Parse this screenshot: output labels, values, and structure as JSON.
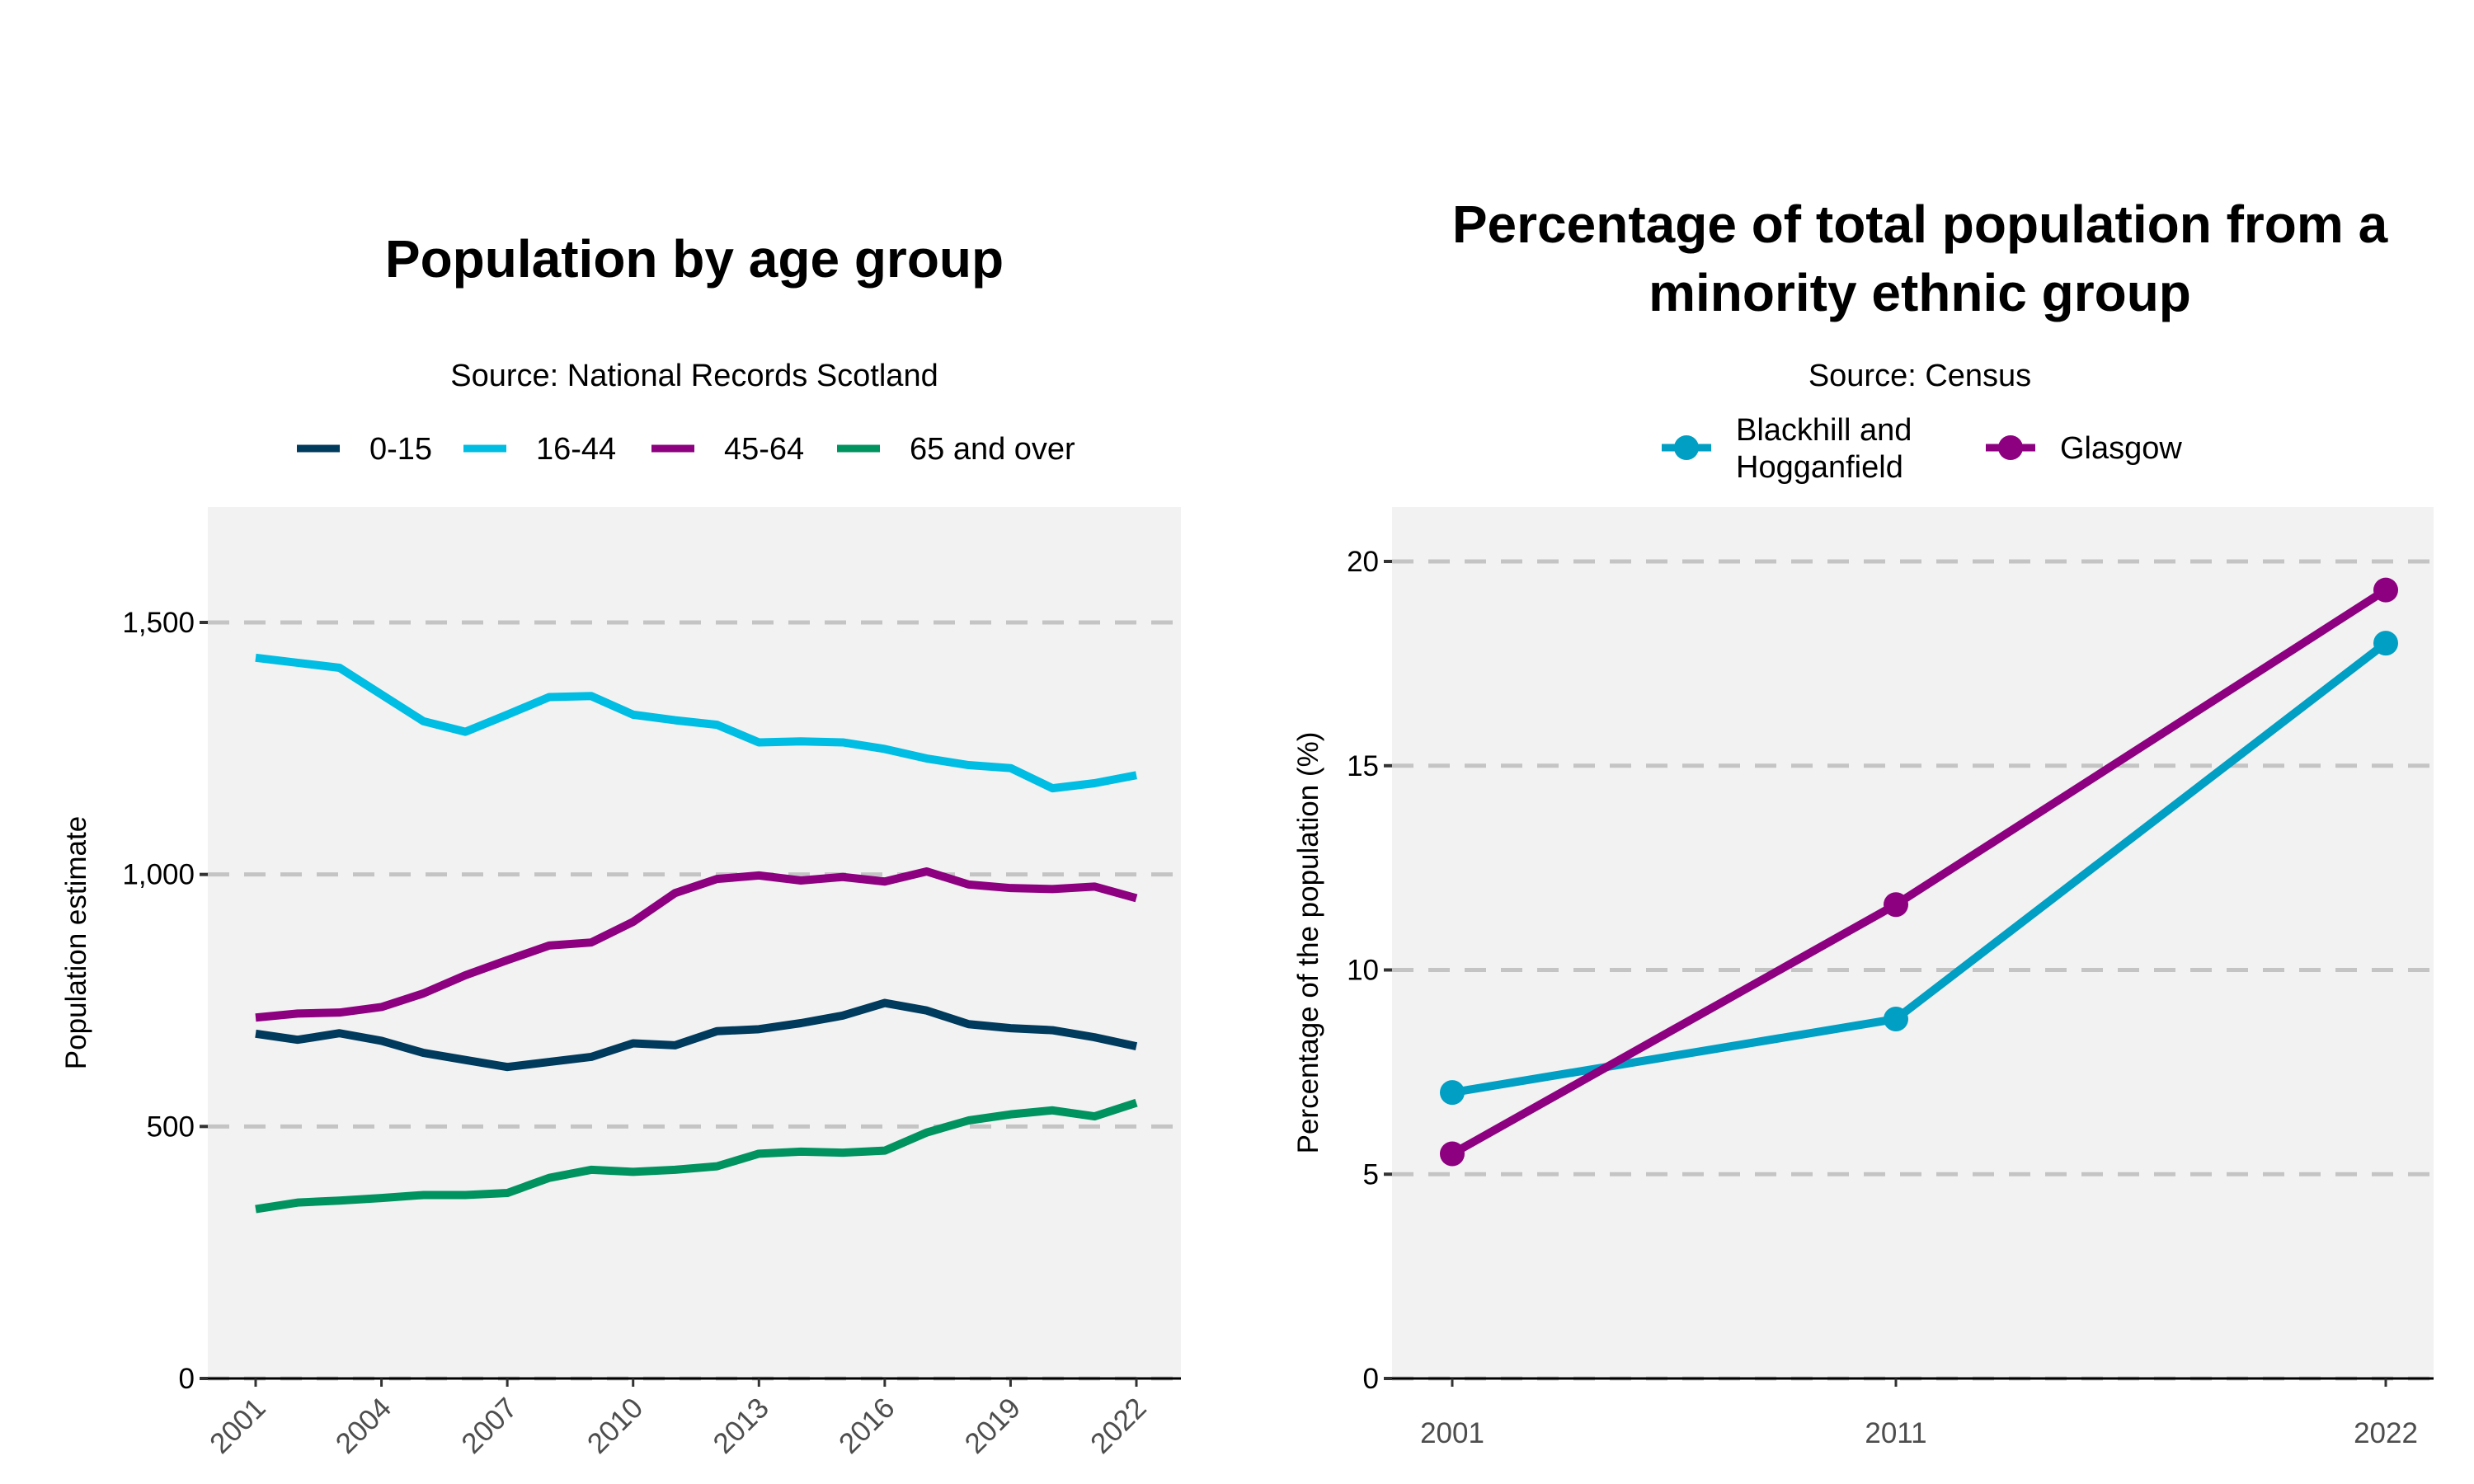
{
  "chart_data": [
    {
      "type": "line",
      "title": "Population by age group",
      "subtitle": "Source: National Records Scotland",
      "xlabel": "",
      "ylabel": "Population estimate",
      "ylim": [
        0,
        1720
      ],
      "yticks": [
        0,
        500,
        1000,
        1500
      ],
      "ytick_labels": [
        "0",
        "500",
        "1,000",
        "1,500"
      ],
      "xticks": [
        2001,
        2004,
        2007,
        2010,
        2013,
        2016,
        2019,
        2022
      ],
      "xtick_labels": [
        "2001",
        "2004",
        "2007",
        "2010",
        "2013",
        "2016",
        "2019",
        "2022"
      ],
      "grid": "horizontal dashed",
      "legend": "top",
      "x": [
        2001,
        2002,
        2003,
        2004,
        2005,
        2006,
        2007,
        2008,
        2009,
        2010,
        2011,
        2012,
        2013,
        2014,
        2015,
        2016,
        2017,
        2018,
        2019,
        2020,
        2021,
        2022
      ],
      "series": [
        {
          "name": "0-15",
          "color": "#003a5d",
          "values": [
            684,
            672,
            685,
            670,
            646,
            632,
            618,
            628,
            638,
            665,
            661,
            689,
            693,
            705,
            720,
            745,
            730,
            703,
            695,
            691,
            677,
            659
          ]
        },
        {
          "name": "16-44",
          "color": "#00bde3",
          "values": [
            1430,
            1420,
            1410,
            1357,
            1304,
            1283,
            1317,
            1352,
            1354,
            1317,
            1306,
            1297,
            1262,
            1264,
            1262,
            1249,
            1230,
            1217,
            1211,
            1171,
            1181,
            1197
          ]
        },
        {
          "name": "45-64",
          "color": "#8d0080",
          "values": [
            716,
            724,
            726,
            737,
            764,
            800,
            830,
            859,
            865,
            906,
            963,
            991,
            998,
            988,
            995,
            986,
            1006,
            980,
            973,
            971,
            976,
            953
          ]
        },
        {
          "name": "65 and over",
          "color": "#009360",
          "values": [
            336,
            349,
            353,
            358,
            364,
            364,
            368,
            398,
            414,
            410,
            414,
            421,
            446,
            450,
            448,
            452,
            488,
            512,
            524,
            532,
            520,
            547
          ]
        }
      ]
    },
    {
      "type": "line",
      "title": "Percentage of total population from a minority ethnic group",
      "title_lines": [
        "Percentage of total population from a",
        "minority ethnic group"
      ],
      "subtitle": "Source: Census",
      "xlabel": "",
      "ylabel": "Percentage of the population (%)",
      "ylim": [
        0,
        21.4
      ],
      "yticks": [
        0,
        5,
        10,
        15,
        20
      ],
      "ytick_labels": [
        "0",
        "5",
        "10",
        "15",
        "20"
      ],
      "x": [
        "2001",
        "2011",
        "2022"
      ],
      "grid": "horizontal dashed",
      "legend": "top",
      "markers": true,
      "series": [
        {
          "name": "Blackhill and Hogganfield",
          "name_lines": [
            "Blackhill and",
            "Hogganfield"
          ],
          "color": "#009fc3",
          "values": [
            7.0,
            8.8,
            18.0
          ]
        },
        {
          "name": "Glasgow",
          "color": "#8d0080",
          "values": [
            5.5,
            11.6,
            19.3
          ]
        }
      ]
    }
  ],
  "colors": {
    "panel_bg": "#f2f2f2",
    "grid": "#c4c4c4",
    "axis": "#000000"
  }
}
